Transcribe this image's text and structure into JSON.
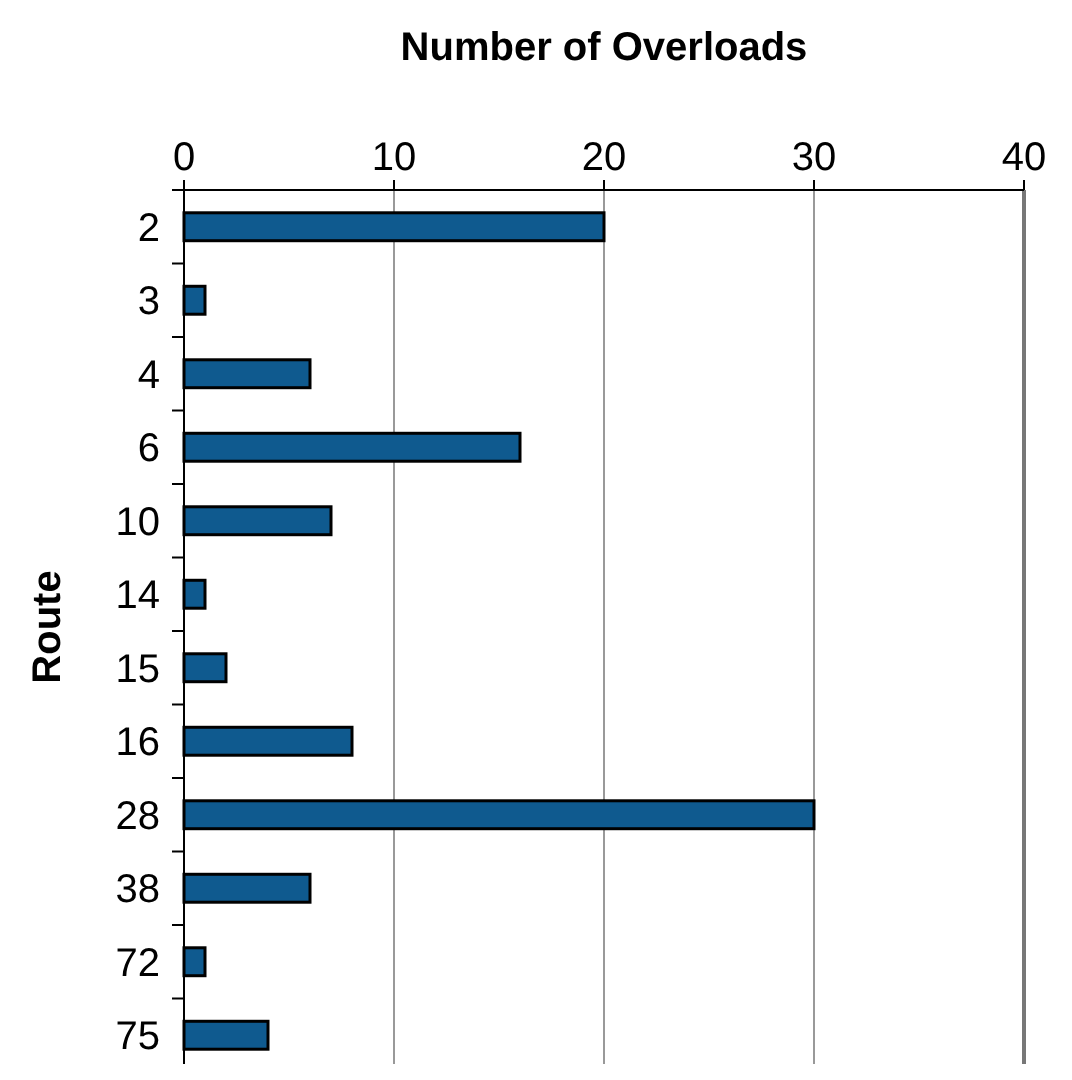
{
  "chart_data": {
    "type": "bar",
    "orientation": "horizontal",
    "xlabel": "Number of Overloads",
    "ylabel": "Route",
    "categories": [
      "2",
      "3",
      "4",
      "6",
      "10",
      "14",
      "15",
      "16",
      "28",
      "38",
      "72",
      "75"
    ],
    "values": [
      20,
      1,
      6,
      16,
      7,
      1,
      2,
      8,
      30,
      6,
      1,
      4
    ],
    "color": "#0f5a8f",
    "xlim": [
      0,
      40
    ],
    "xticks": [
      0,
      10,
      20,
      30,
      40
    ],
    "grid": "x"
  }
}
